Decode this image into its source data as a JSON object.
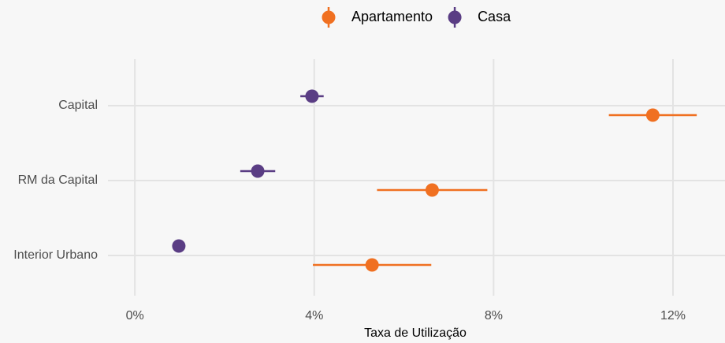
{
  "chart_data": {
    "type": "dot-errorbar",
    "x_label": "Taxa de Utilização",
    "categories": [
      "Capital",
      "RM da Capital",
      "Interior Urbano"
    ],
    "series": [
      {
        "name": "Apartamento",
        "color": "#f07021",
        "values": [
          11.55,
          6.63,
          5.29
        ],
        "errors": [
          0.98,
          1.23,
          1.32
        ]
      },
      {
        "name": "Casa",
        "color": "#5a3d84",
        "values": [
          3.95,
          2.74,
          0.98
        ],
        "errors": [
          0.26,
          0.39,
          0.05
        ]
      }
    ],
    "xlim": [
      -0.6,
      13.16
    ],
    "xticks": [
      {
        "value": 0,
        "label": "0%"
      },
      {
        "value": 4,
        "label": "4%"
      },
      {
        "value": 8,
        "label": "8%"
      },
      {
        "value": 12,
        "label": "12%"
      }
    ],
    "grid": true,
    "legend": "top"
  }
}
